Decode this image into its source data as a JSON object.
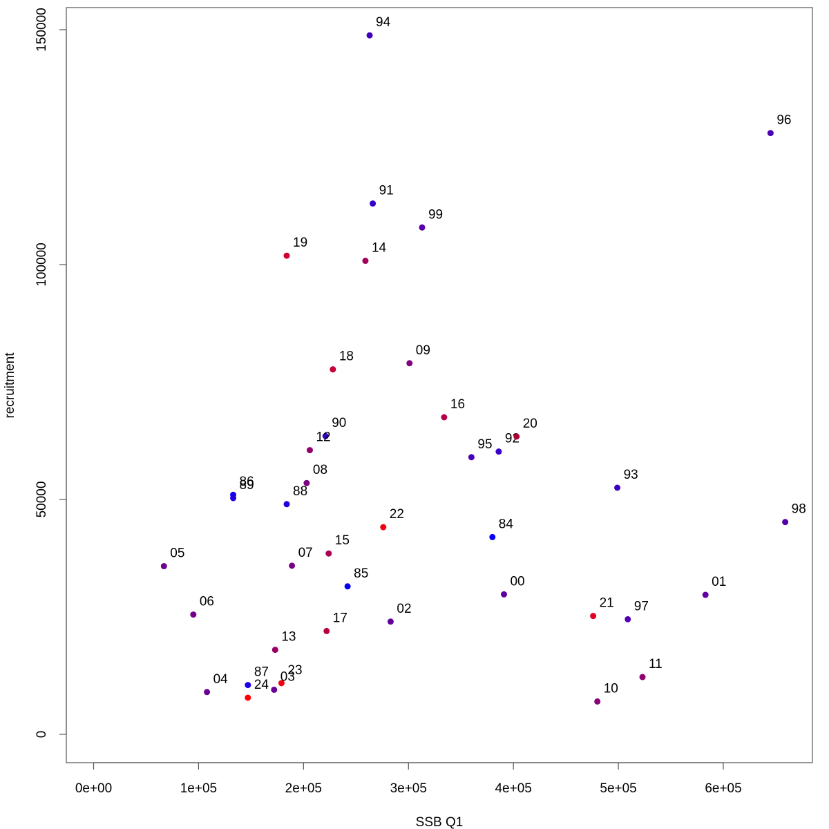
{
  "chart_data": {
    "type": "scatter",
    "title": "",
    "xlabel": "SSB Q1",
    "ylabel": "recruitment",
    "xlim": [
      0,
      660000
    ],
    "ylim": [
      -6000,
      153000
    ],
    "x_ticks": [
      0,
      100000,
      200000,
      300000,
      400000,
      500000,
      600000
    ],
    "x_tick_labels": [
      "0e+00",
      "1e+05",
      "2e+05",
      "3e+05",
      "4e+05",
      "5e+05",
      "6e+05"
    ],
    "y_ticks": [
      0,
      50000,
      100000,
      150000
    ],
    "y_tick_labels": [
      "0",
      "50000",
      "100000",
      "150000"
    ],
    "grid": false,
    "legend": "none",
    "points": [
      {
        "label": "84",
        "x": 380000,
        "y": 42000,
        "color": "#0a00f8"
      },
      {
        "label": "85",
        "x": 242000,
        "y": 31500,
        "color": "#0800f0"
      },
      {
        "label": "86",
        "x": 133000,
        "y": 51000,
        "color": "#1400ee"
      },
      {
        "label": "87",
        "x": 147000,
        "y": 10500,
        "color": "#1a00e8"
      },
      {
        "label": "88",
        "x": 184000,
        "y": 49000,
        "color": "#2000e0"
      },
      {
        "label": "89",
        "x": 133000,
        "y": 50300,
        "color": "#2000e0"
      },
      {
        "label": "90",
        "x": 221000,
        "y": 63500,
        "color": "#3000d0"
      },
      {
        "label": "91",
        "x": 266000,
        "y": 113000,
        "color": "#3300cc"
      },
      {
        "label": "92",
        "x": 386000,
        "y": 60200,
        "color": "#3800c8"
      },
      {
        "label": "93",
        "x": 499000,
        "y": 52500,
        "color": "#3c00c0"
      },
      {
        "label": "94",
        "x": 263000,
        "y": 148800,
        "color": "#4000c0"
      },
      {
        "label": "95",
        "x": 360000,
        "y": 59000,
        "color": "#4800b8"
      },
      {
        "label": "96",
        "x": 645000,
        "y": 128000,
        "color": "#4a00b4"
      },
      {
        "label": "97",
        "x": 509000,
        "y": 24500,
        "color": "#5000b0"
      },
      {
        "label": "98",
        "x": 659000,
        "y": 45200,
        "color": "#5400aa"
      },
      {
        "label": "99",
        "x": 313000,
        "y": 107900,
        "color": "#5800a8"
      },
      {
        "label": "00",
        "x": 391000,
        "y": 29800,
        "color": "#5c00a2"
      },
      {
        "label": "01",
        "x": 583000,
        "y": 29700,
        "color": "#6000a0"
      },
      {
        "label": "02",
        "x": 283000,
        "y": 24000,
        "color": "#64009a"
      },
      {
        "label": "03",
        "x": 172000,
        "y": 9500,
        "color": "#680096"
      },
      {
        "label": "04",
        "x": 108000,
        "y": 9000,
        "color": "#6c0092"
      },
      {
        "label": "05",
        "x": 67000,
        "y": 35800,
        "color": "#70008e"
      },
      {
        "label": "06",
        "x": 95000,
        "y": 25500,
        "color": "#74008a"
      },
      {
        "label": "07",
        "x": 189000,
        "y": 35900,
        "color": "#780086"
      },
      {
        "label": "08",
        "x": 203000,
        "y": 53500,
        "color": "#7c0082"
      },
      {
        "label": "09",
        "x": 301000,
        "y": 79000,
        "color": "#80007e"
      },
      {
        "label": "10",
        "x": 480000,
        "y": 7000,
        "color": "#88007a"
      },
      {
        "label": "11",
        "x": 523000,
        "y": 12200,
        "color": "#8e0070"
      },
      {
        "label": "12",
        "x": 206000,
        "y": 60500,
        "color": "#94006a"
      },
      {
        "label": "13",
        "x": 173000,
        "y": 18000,
        "color": "#9a0064"
      },
      {
        "label": "14",
        "x": 259000,
        "y": 100800,
        "color": "#a2005c"
      },
      {
        "label": "15",
        "x": 224000,
        "y": 38500,
        "color": "#aa0054"
      },
      {
        "label": "16",
        "x": 334000,
        "y": 67500,
        "color": "#b2004c"
      },
      {
        "label": "17",
        "x": 222000,
        "y": 22000,
        "color": "#ba0044"
      },
      {
        "label": "18",
        "x": 228000,
        "y": 77700,
        "color": "#c6003a"
      },
      {
        "label": "19",
        "x": 184000,
        "y": 101900,
        "color": "#d00030"
      },
      {
        "label": "20",
        "x": 403000,
        "y": 63400,
        "color": "#b00030"
      },
      {
        "label": "21",
        "x": 476000,
        "y": 25200,
        "color": "#e40020"
      },
      {
        "label": "22",
        "x": 276000,
        "y": 44100,
        "color": "#ee0014"
      },
      {
        "label": "23",
        "x": 179000,
        "y": 10900,
        "color": "#f4000c"
      },
      {
        "label": "24",
        "x": 147000,
        "y": 7800,
        "color": "#ff0000"
      }
    ]
  }
}
